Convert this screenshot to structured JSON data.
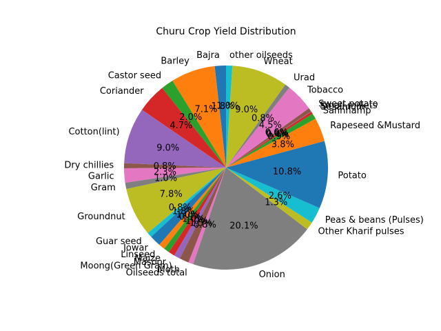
{
  "chart_data": {
    "type": "pie",
    "title": "Churu Crop Yield Distribution",
    "start_angle_deg": 90,
    "direction": "counterclockwise",
    "labels": [
      "Bajra",
      "Barley",
      "Castor seed",
      "Coriander",
      "Cotton(lint)",
      "Dry chillies",
      "Garlic",
      "Gram",
      "Groundnut",
      "Guar seed",
      "Jowar",
      "Linseed",
      "Maize",
      "Masoor",
      "Moong(Green Gram)",
      "Moth",
      "Oilseeds total",
      "Onion",
      "Other Kharif pulses",
      "Peas & beans (Pulses)",
      "Potato",
      "Rapeseed &Mustard",
      "Sannhamp",
      "Sesamum",
      "Small millets",
      "Sweet potato",
      "Tobacco",
      "Urad",
      "Wheat",
      "other oilseeds"
    ],
    "percent_labels": [
      "1.8%",
      "7.1%",
      "2.0%",
      "4.7%",
      "9.0%",
      "0.8%",
      "2.3%",
      "1.0%",
      "7.8%",
      "0.8%",
      "1.8%",
      "1.0%",
      "0.9%",
      "1.0%",
      "1.0%",
      "1.5%",
      "0.8%",
      "20.1%",
      "1.3%",
      "2.6%",
      "10.8%",
      "3.8%",
      "0.9%",
      "0.4%",
      "0.0%",
      "0.6%",
      "4.5%",
      "0.8%",
      "9.0%",
      "1.0%"
    ],
    "values": [
      1.8,
      7.1,
      2.0,
      4.7,
      9.0,
      0.8,
      2.3,
      1.0,
      7.8,
      0.8,
      1.8,
      1.0,
      0.9,
      1.0,
      1.0,
      1.5,
      0.8,
      20.1,
      1.3,
      2.6,
      10.8,
      3.8,
      0.9,
      0.4,
      0.05,
      0.6,
      4.5,
      0.8,
      9.0,
      1.0
    ],
    "colors": [
      "#1f77b4",
      "#ff7f0e",
      "#2ca02c",
      "#d62728",
      "#9467bd",
      "#8c564b",
      "#e377c2",
      "#7f7f7f",
      "#bcbd22",
      "#17becf"
    ]
  }
}
